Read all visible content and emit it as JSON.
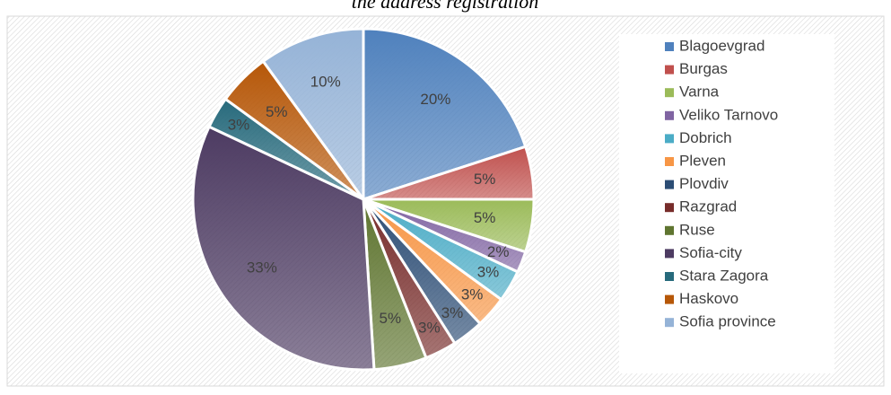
{
  "chart_data": {
    "type": "pie",
    "title": "the address registration",
    "categories": [
      "Blagoevgrad",
      "Burgas",
      "Varna",
      "Veliko Tarnovo",
      "Dobrich",
      "Pleven",
      "Plovdiv",
      "Razgrad",
      "Ruse",
      "Sofia-city",
      "Stara Zagora",
      "Haskovo",
      "Sofia province"
    ],
    "values": [
      20,
      5,
      5,
      2,
      3,
      3,
      3,
      3,
      5,
      33,
      3,
      5,
      10
    ],
    "value_labels": [
      "20%",
      "5%",
      "5%",
      "2%",
      "3%",
      "3%",
      "3%",
      "3%",
      "5%",
      "33%",
      "3%",
      "5%",
      "10%"
    ],
    "colors": [
      "#4f81bd",
      "#c0504d",
      "#9bbb59",
      "#8064a2",
      "#4bacc6",
      "#f79646",
      "#2c4d75",
      "#772c2a",
      "#5f7530",
      "#4d3b62",
      "#276a7c",
      "#b65708",
      "#95b3d7"
    ],
    "legend": "right"
  }
}
